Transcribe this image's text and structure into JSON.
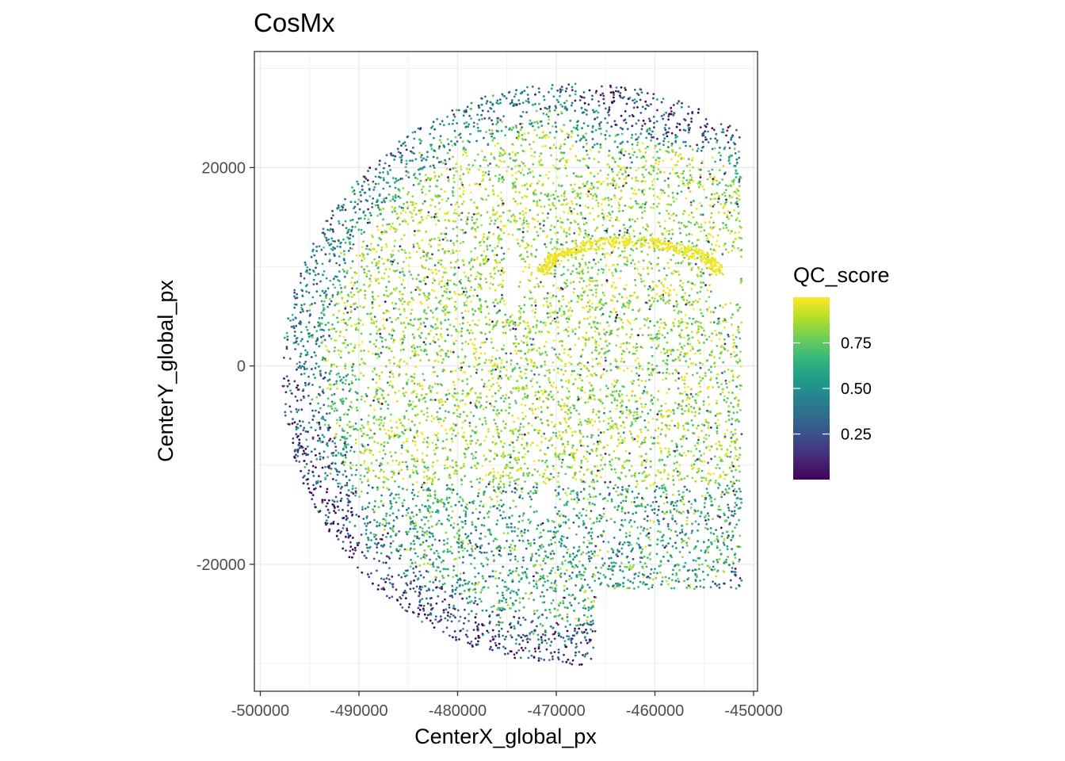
{
  "chart_data": {
    "type": "scatter",
    "title": "CosMx",
    "xlabel": "CenterX_global_px",
    "ylabel": "CenterY_global_px",
    "xlim": [
      -500600,
      -449600
    ],
    "ylim": [
      -32800,
      31700
    ],
    "x_ticks": [
      -500000,
      -490000,
      -480000,
      -470000,
      -460000,
      -450000
    ],
    "x_tick_labels": [
      "-500000",
      "-490000",
      "-480000",
      "-470000",
      "-460000",
      "-450000"
    ],
    "y_ticks": [
      -20000,
      0,
      20000
    ],
    "y_tick_labels": [
      "-20000",
      "0",
      "20000"
    ],
    "grid": true,
    "color_variable": "QC_score",
    "colorscale": "viridis",
    "colorbar": {
      "title": "QC_score",
      "min": 0.0,
      "max": 1.0,
      "ticks": [
        0.25,
        0.5,
        0.75
      ],
      "tick_labels": [
        "0.25",
        "0.50",
        "0.75"
      ],
      "colors": [
        "#440154",
        "#482878",
        "#3e4989",
        "#31688e",
        "#26828e",
        "#1f9e89",
        "#35b779",
        "#6ece58",
        "#b5de2b",
        "#fde725"
      ]
    },
    "point_count_rendered": 9000,
    "data_description": "Coronal mouse brain hemisphere section; cells distributed from x≈-497600 to x≈-451200 and y≈-30000 to y≈28800; high QC (yellow) in cortex/center, lower QC (blue/purple) at outer edges and bottom regions; hippocampus visible near (-463000, 12000); FOV grid gaps every ~5000 px."
  }
}
